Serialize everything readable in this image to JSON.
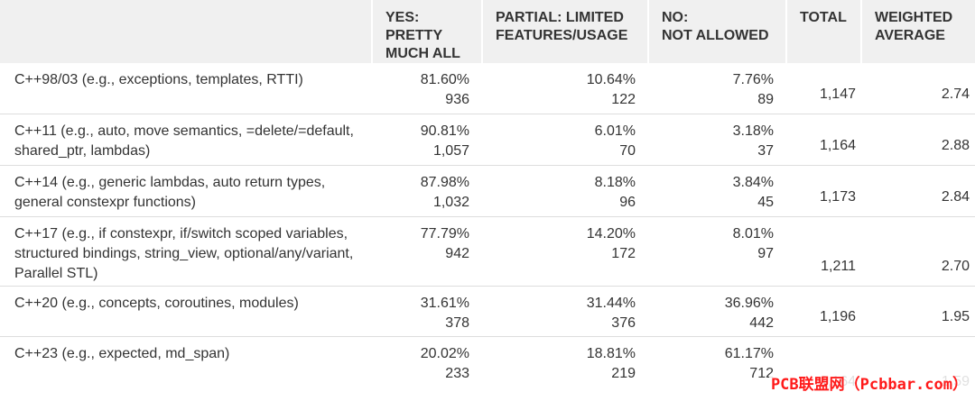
{
  "columns": {
    "yes": "YES:\nPRETTY\nMUCH ALL",
    "partial": "PARTIAL: LIMITED\nFEATURES/USAGE",
    "no": "NO:\nNOT ALLOWED",
    "total": "TOTAL",
    "weighted": "WEIGHTED\nAVERAGE"
  },
  "rows": [
    {
      "question": "C++98/03 (e.g., exceptions, templates, RTTI)",
      "yes_pct": "81.60%",
      "yes_n": "936",
      "partial_pct": "10.64%",
      "partial_n": "122",
      "no_pct": "7.76%",
      "no_n": "89",
      "total": "1,147",
      "weighted": "2.74"
    },
    {
      "question": "C++11 (e.g., auto, move semantics, =delete/=default, shared_ptr, lambdas)",
      "yes_pct": "90.81%",
      "yes_n": "1,057",
      "partial_pct": "6.01%",
      "partial_n": "70",
      "no_pct": "3.18%",
      "no_n": "37",
      "total": "1,164",
      "weighted": "2.88"
    },
    {
      "question": "C++14 (e.g., generic lambdas, auto return types, general constexpr functions)",
      "yes_pct": "87.98%",
      "yes_n": "1,032",
      "partial_pct": "8.18%",
      "partial_n": "96",
      "no_pct": "3.84%",
      "no_n": "45",
      "total": "1,173",
      "weighted": "2.84"
    },
    {
      "question": "C++17 (e.g., if constexpr, if/switch scoped variables, structured bindings, string_view, optional/any/variant, Parallel STL)",
      "yes_pct": "77.79%",
      "yes_n": "942",
      "partial_pct": "14.20%",
      "partial_n": "172",
      "no_pct": "8.01%",
      "no_n": "97",
      "total": "1,211",
      "weighted": "2.70"
    },
    {
      "question": "C++20 (e.g., concepts, coroutines, modules)",
      "yes_pct": "31.61%",
      "yes_n": "378",
      "partial_pct": "31.44%",
      "partial_n": "376",
      "no_pct": "36.96%",
      "no_n": "442",
      "total": "1,196",
      "weighted": "1.95"
    },
    {
      "question": "C++23 (e.g., expected, md_span)",
      "yes_pct": "20.02%",
      "yes_n": "233",
      "partial_pct": "18.81%",
      "partial_n": "219",
      "no_pct": "61.17%",
      "no_n": "712",
      "total": "1,164",
      "weighted": "1.59"
    }
  ],
  "watermark": "PCB联盟网（Pcbbar.com）",
  "colors": {
    "header_bg": "#f0f0f0",
    "text": "#333333",
    "row_border": "#dddddd",
    "watermark": "#ff1a1a"
  }
}
